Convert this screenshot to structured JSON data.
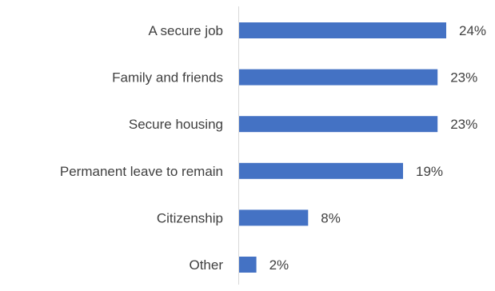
{
  "chart_data": {
    "type": "bar",
    "orientation": "horizontal",
    "categories": [
      "A secure job",
      "Family and friends",
      "Secure housing",
      "Permanent leave to remain",
      "Citizenship",
      "Other"
    ],
    "values": [
      24,
      23,
      23,
      19,
      8,
      2
    ],
    "value_labels": [
      "24%",
      "23%",
      "23%",
      "19%",
      "8%",
      "2%"
    ],
    "title": "",
    "xlabel": "",
    "ylabel": "",
    "xlim": [
      0,
      24
    ],
    "grid": false,
    "legend": "none",
    "colors": {
      "bar": "#4472C4",
      "axis": "#D9D9D9",
      "text": "#404040"
    }
  }
}
